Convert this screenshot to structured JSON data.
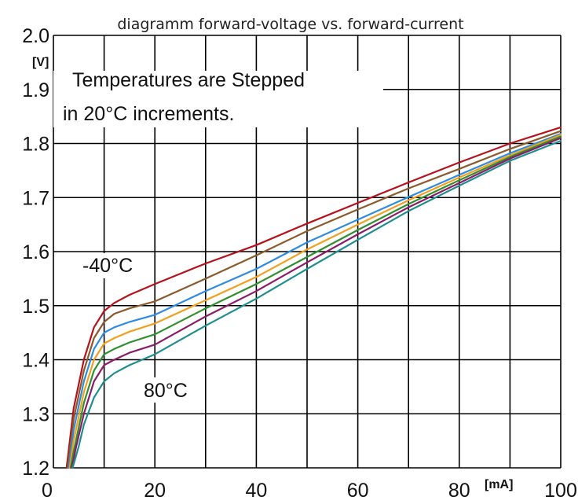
{
  "chart_data": {
    "type": "line",
    "title": "diagramm forward-voltage vs. forward-current",
    "xlabel": "",
    "ylabel": "",
    "x_unit": "[mA]",
    "y_unit": "[V]",
    "xlim": [
      0,
      100
    ],
    "ylim": [
      1.2,
      2.0
    ],
    "x_ticks": [
      "0",
      "20",
      "40",
      "60",
      "80",
      "100"
    ],
    "y_ticks": [
      "1.2",
      "1.3",
      "1.4",
      "1.5",
      "1.6",
      "1.7",
      "1.8",
      "1.9",
      "2.0"
    ],
    "grid": true,
    "annotations": {
      "note_line1": "Temperatures are Stepped",
      "note_line2": "in 20°C increments.",
      "label_cold": "-40°C",
      "label_hot": "80°C"
    },
    "series": [
      {
        "color": "#b5121b",
        "x": [
          2.6,
          4,
          6,
          8,
          10,
          12,
          15,
          20,
          30,
          40,
          50,
          60,
          70,
          80,
          90,
          100
        ],
        "y": [
          1.2,
          1.31,
          1.4,
          1.46,
          1.49,
          1.505,
          1.52,
          1.54,
          1.578,
          1.612,
          1.652,
          1.69,
          1.728,
          1.765,
          1.8,
          1.83
        ]
      },
      {
        "color": "#8b5a2b",
        "x": [
          2.8,
          4,
          6,
          8,
          10,
          12,
          15,
          20,
          30,
          40,
          50,
          60,
          70,
          80,
          90,
          100
        ],
        "y": [
          1.2,
          1.29,
          1.38,
          1.44,
          1.47,
          1.485,
          1.495,
          1.508,
          1.55,
          1.593,
          1.638,
          1.678,
          1.717,
          1.753,
          1.79,
          1.823
        ]
      },
      {
        "color": "#2e8be0",
        "x": [
          3.0,
          4,
          6,
          8,
          10,
          12,
          15,
          20,
          30,
          40,
          50,
          60,
          70,
          80,
          90,
          100
        ],
        "y": [
          1.2,
          1.27,
          1.36,
          1.42,
          1.45,
          1.46,
          1.47,
          1.483,
          1.527,
          1.568,
          1.617,
          1.659,
          1.701,
          1.742,
          1.782,
          1.818
        ]
      },
      {
        "color": "#f0a01e",
        "x": [
          3.2,
          4,
          6,
          8,
          10,
          12,
          15,
          20,
          30,
          40,
          50,
          60,
          70,
          80,
          90,
          100
        ],
        "y": [
          1.2,
          1.25,
          1.34,
          1.4,
          1.43,
          1.44,
          1.452,
          1.467,
          1.51,
          1.553,
          1.604,
          1.65,
          1.695,
          1.737,
          1.778,
          1.816
        ]
      },
      {
        "color": "#2f8f2f",
        "x": [
          3.4,
          4,
          6,
          8,
          10,
          12,
          15,
          20,
          30,
          40,
          50,
          60,
          70,
          80,
          90,
          100
        ],
        "y": [
          1.2,
          1.23,
          1.32,
          1.38,
          1.41,
          1.42,
          1.432,
          1.447,
          1.495,
          1.54,
          1.59,
          1.64,
          1.688,
          1.732,
          1.775,
          1.813
        ]
      },
      {
        "color": "#8a1c6a",
        "x": [
          3.6,
          4.5,
          6,
          8,
          10,
          12,
          15,
          20,
          30,
          40,
          50,
          60,
          70,
          80,
          90,
          100
        ],
        "y": [
          1.2,
          1.24,
          1.3,
          1.36,
          1.39,
          1.4,
          1.413,
          1.428,
          1.48,
          1.527,
          1.58,
          1.632,
          1.682,
          1.727,
          1.772,
          1.81
        ]
      },
      {
        "color": "#1f8e8e",
        "x": [
          3.8,
          5,
          6,
          8,
          10,
          12,
          15,
          20,
          30,
          40,
          50,
          60,
          70,
          80,
          90,
          100
        ],
        "y": [
          1.2,
          1.24,
          1.28,
          1.33,
          1.36,
          1.375,
          1.39,
          1.41,
          1.463,
          1.513,
          1.568,
          1.622,
          1.675,
          1.722,
          1.768,
          1.805
        ]
      }
    ]
  }
}
